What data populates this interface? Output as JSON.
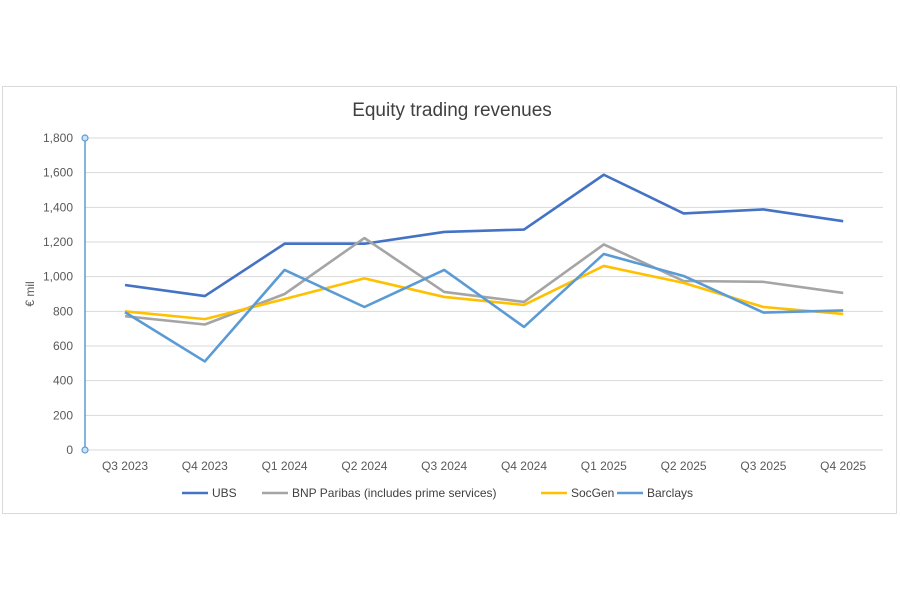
{
  "chart_data": {
    "type": "line",
    "title": "Equity trading revenues",
    "xlabel": "",
    "ylabel": "€ mil",
    "ylim": [
      0,
      1800
    ],
    "yticks": [
      0,
      200,
      400,
      600,
      800,
      1000,
      1200,
      1400,
      1600,
      1800
    ],
    "ytick_labels": [
      "0",
      "200",
      "400",
      "600",
      "800",
      "1,000",
      "1,200",
      "1,400",
      "1,600",
      "1,800"
    ],
    "grid": true,
    "legend": "bottom",
    "categories": [
      "Q3 2023",
      "Q4 2023",
      "Q1 2024",
      "Q2 2024",
      "Q3 2024",
      "Q4 2024",
      "Q1 2025",
      "Q2 2025",
      "Q3 2025",
      "Q4 2025"
    ],
    "series": [
      {
        "name": "UBS",
        "color": "#4472C4",
        "values": [
          952,
          888,
          1190,
          1190,
          1258,
          1272,
          1588,
          1365,
          1388,
          1320
        ]
      },
      {
        "name": "BNP Paribas (includes prime services)",
        "color": "#A5A5A5",
        "values": [
          772,
          724,
          900,
          1223,
          912,
          854,
          1186,
          975,
          970,
          906
        ]
      },
      {
        "name": "SocGen",
        "color": "#FFC000",
        "values": [
          800,
          755,
          871,
          990,
          883,
          837,
          1062,
          964,
          825,
          785
        ]
      },
      {
        "name": "Barclays",
        "color": "#5B9BD5",
        "values": [
          795,
          511,
          1039,
          825,
          1039,
          710,
          1131,
          1004,
          793,
          805
        ]
      }
    ]
  }
}
